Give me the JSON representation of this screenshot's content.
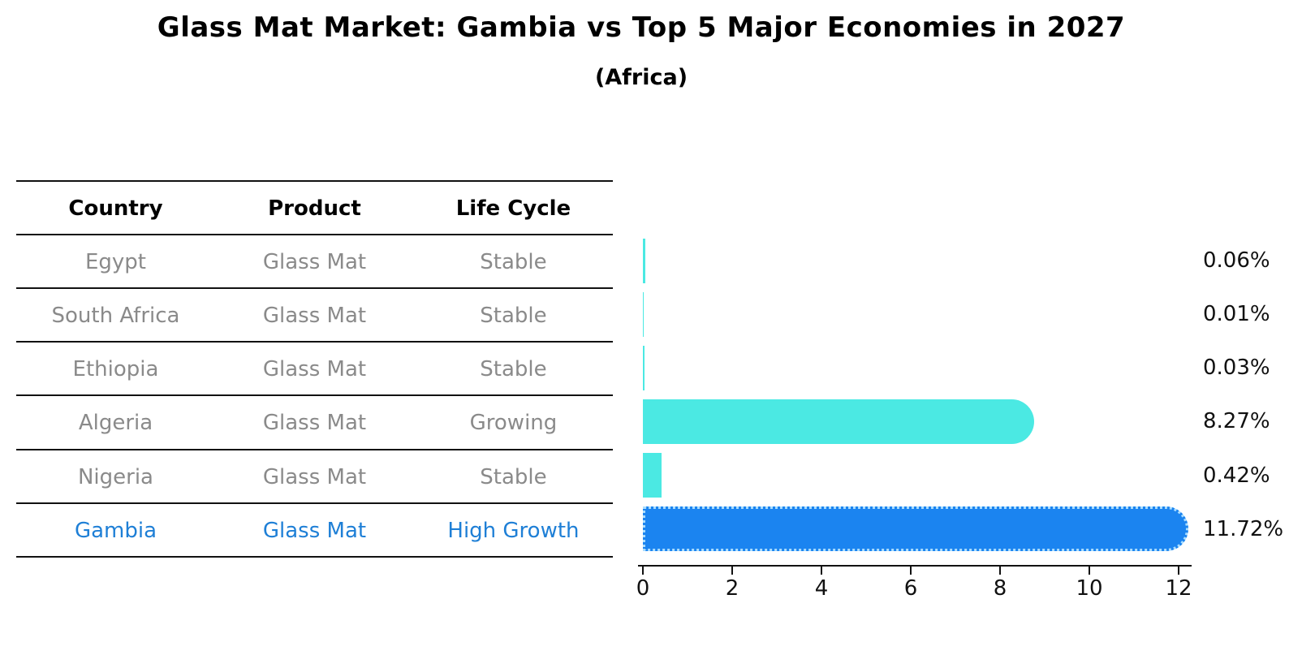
{
  "header": {
    "title": "Glass Mat Market: Gambia vs Top 5 Major Economies in 2027",
    "subtitle": "(Africa)"
  },
  "table": {
    "headers": [
      "Country",
      "Product",
      "Life Cycle"
    ],
    "rows": [
      {
        "country": "Egypt",
        "product": "Glass Mat",
        "life_cycle": "Stable",
        "highlight": false
      },
      {
        "country": "South Africa",
        "product": "Glass Mat",
        "life_cycle": "Stable",
        "highlight": false
      },
      {
        "country": "Ethiopia",
        "product": "Glass Mat",
        "life_cycle": "Stable",
        "highlight": false
      },
      {
        "country": "Algeria",
        "product": "Glass Mat",
        "life_cycle": "Growing",
        "highlight": false
      },
      {
        "country": "Nigeria",
        "product": "Glass Mat",
        "life_cycle": "Stable",
        "highlight": false
      },
      {
        "country": "Gambia",
        "product": "Glass Mat",
        "life_cycle": "High Growth",
        "highlight": true
      }
    ]
  },
  "chart_data": {
    "type": "bar",
    "orientation": "horizontal",
    "title": "Glass Mat Market: Gambia vs Top 5 Major Economies in 2027",
    "subtitle": "(Africa)",
    "categories": [
      "Egypt",
      "South Africa",
      "Ethiopia",
      "Algeria",
      "Nigeria",
      "Gambia"
    ],
    "values": [
      0.06,
      0.01,
      0.03,
      8.27,
      0.42,
      11.72
    ],
    "value_labels": [
      "0.06%",
      "0.01%",
      "0.03%",
      "8.27%",
      "0.42%",
      "11.72%"
    ],
    "x_ticks": [
      0,
      2,
      4,
      6,
      8,
      10,
      12
    ],
    "xlim": [
      0,
      12.3
    ],
    "grid": false,
    "legend_position": "none",
    "highlight_category": "Gambia",
    "bar_color": "#4be9e3",
    "highlight_bar_color": "#1b84f0",
    "highlight_border_color": "#a9ddff",
    "highlight_text_color": "#1e7fd6",
    "axis_color": "#111111",
    "row_text_color": "#8a8a8a"
  }
}
